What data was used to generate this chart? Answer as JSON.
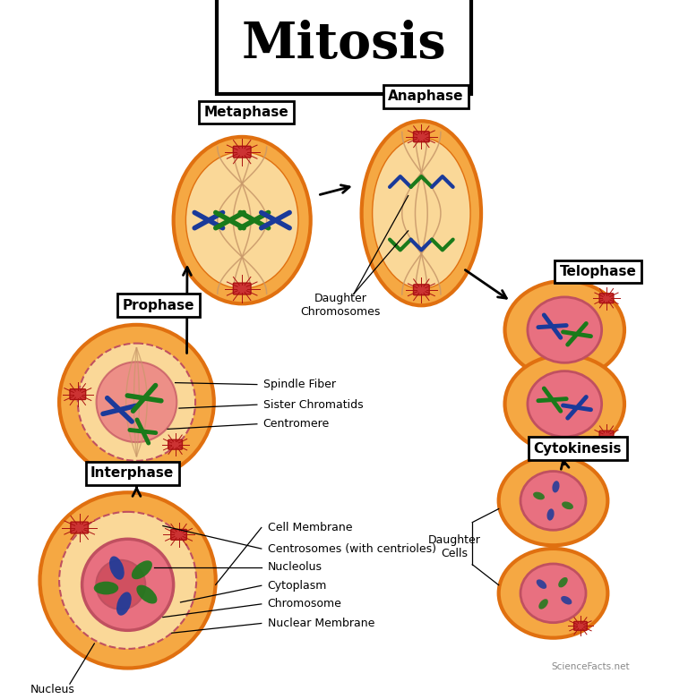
{
  "title": "Mitosis",
  "bg_color": "#ffffff",
  "cell_outer_color": "#f5a843",
  "cell_outer_edge": "#e07010",
  "cell_inner_color": "#fad898",
  "nucleus_pink": "#e87080",
  "nucleus_pink_edge": "#c05060",
  "chromosome_blue": "#1a3a9a",
  "chromosome_green": "#1a7a1a",
  "centrosome_color": "#cc3333",
  "spindle_color": "#c8986a",
  "watermark": "ScienceFacts.net",
  "interphase_labels": [
    "Cell Membrane",
    "Centrosomes (with centrioles)",
    "Nucleolus",
    "Cytoplasm",
    "Chromosome",
    "Nuclear Membrane"
  ],
  "prophase_labels": [
    "Spindle Fiber",
    "Sister Chromatids",
    "Centromere"
  ],
  "anaphase_label": "Daughter\nChromosomes",
  "cytokinesis_label": "Daughter\nCells",
  "nucleus_label": "Nucleus"
}
